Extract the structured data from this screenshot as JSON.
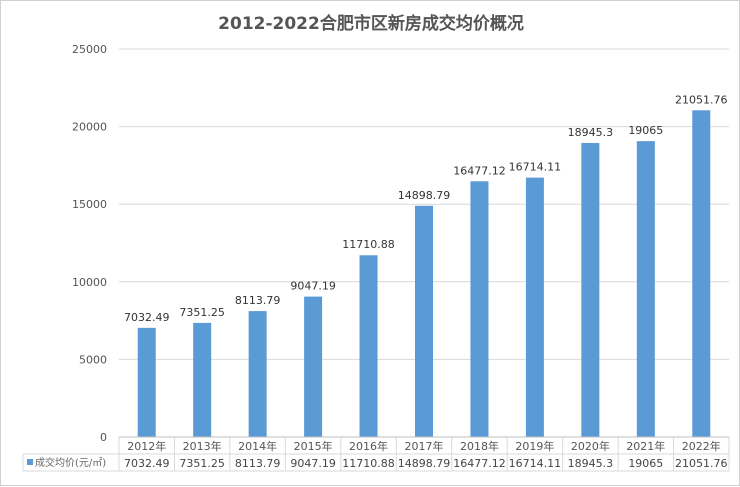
{
  "chart_data": {
    "type": "bar",
    "title": "2012-2022合肥市区新房成交均价概况",
    "categories": [
      "2012年",
      "2013年",
      "2014年",
      "2015年",
      "2016年",
      "2017年",
      "2018年",
      "2019年",
      "2020年",
      "2021年",
      "2022年"
    ],
    "series": [
      {
        "name": "成交均价(元/㎡)",
        "values": [
          7032.49,
          7351.25,
          8113.79,
          9047.19,
          11710.88,
          14898.79,
          16477.12,
          16714.11,
          18945.3,
          19065,
          21051.76
        ],
        "labels": [
          "7032.49",
          "7351.25",
          "8113.79",
          "9047.19",
          "11710.88",
          "14898.79",
          "16477.12",
          "16714.11",
          "18945.3",
          "19065",
          "21051.76"
        ]
      }
    ],
    "yticks": [
      "0",
      "5000",
      "10000",
      "15000",
      "20000",
      "25000"
    ],
    "ylim": [
      0,
      25000
    ],
    "grid": true,
    "legend": "data-table",
    "bar_color": "#5b9bd5"
  }
}
